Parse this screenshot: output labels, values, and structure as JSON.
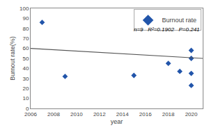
{
  "chart_data": {
    "type": "scatter",
    "xlabel": "year",
    "ylabel": "Burnout rate(%)",
    "series": [
      {
        "name": "Burnout rate",
        "type": "scatter",
        "color": "#2255aa",
        "marker": "diamond",
        "x": [
          2007,
          2009,
          2015,
          2018,
          2019,
          2020,
          2020,
          2020,
          2020
        ],
        "values": [
          86,
          32,
          33,
          45,
          37,
          58,
          50,
          35,
          23
        ]
      },
      {
        "type": "line",
        "color": "#555555",
        "x": [
          2006,
          2021
        ],
        "values": [
          60.0,
          50.0
        ]
      }
    ],
    "annotations": [
      "n=9",
      "R²=0.1902",
      "P=0.241"
    ],
    "xlim": [
      2006,
      2021
    ],
    "ylim": [
      0,
      100
    ],
    "xticks": [
      2006,
      2008,
      2010,
      2012,
      2014,
      2016,
      2018,
      2020
    ],
    "yticks": [
      0,
      10,
      20,
      30,
      40,
      50,
      60,
      70,
      80,
      90,
      100
    ],
    "grid": false,
    "legend": "upper right"
  }
}
